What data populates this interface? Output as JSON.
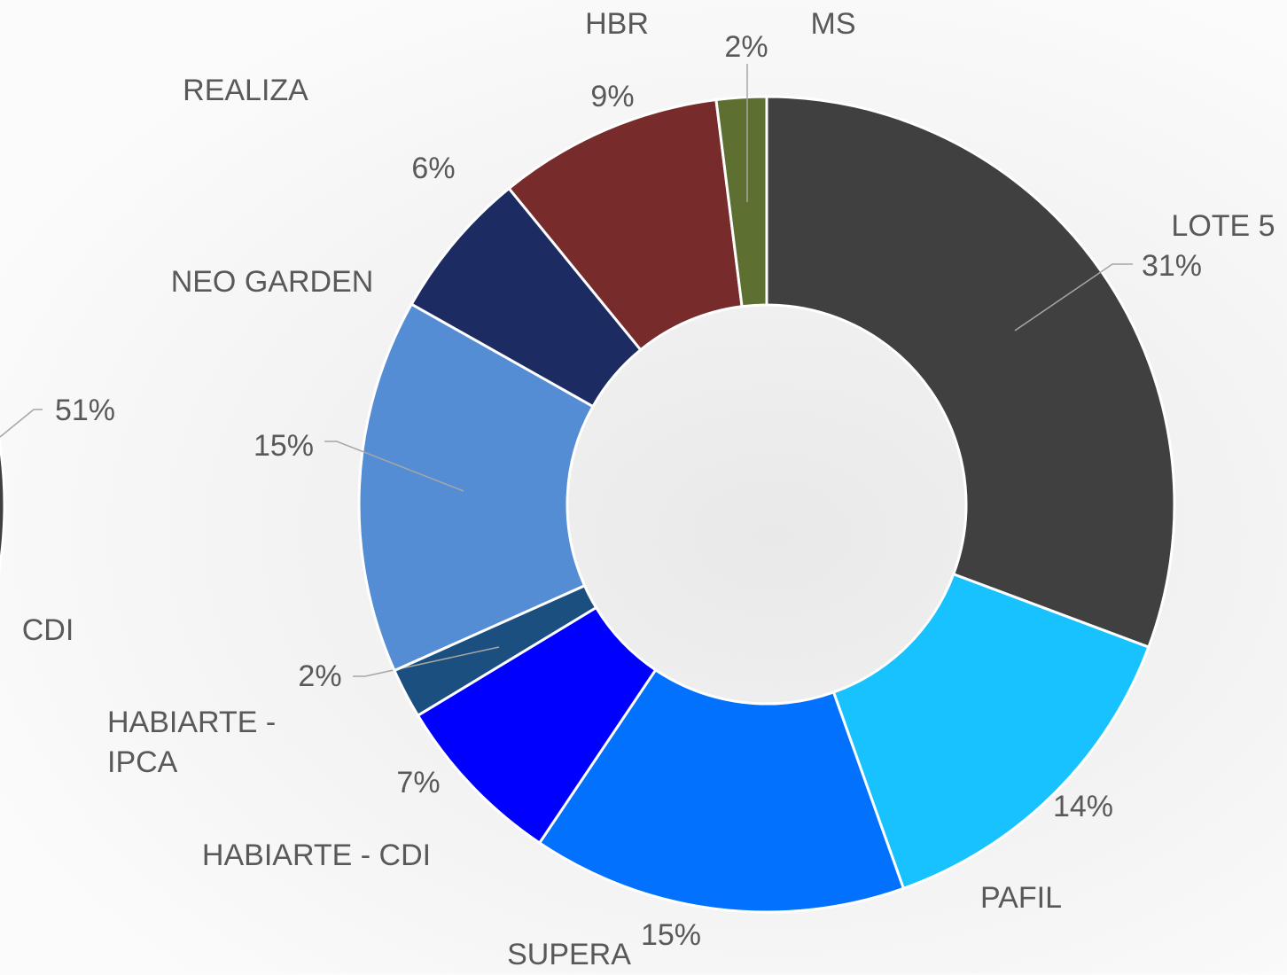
{
  "chart_data": [
    {
      "type": "donut",
      "categories": [
        "LOTE 5",
        "PAFIL",
        "SUPERA",
        "HABIARTE - CDI",
        "HABIARTE - IPCA",
        "NEO GARDEN",
        "REALIZA",
        "HBR",
        "MS"
      ],
      "values": [
        31,
        14,
        15,
        7,
        2,
        15,
        6,
        9,
        2
      ],
      "value_labels": [
        "31%",
        "14%",
        "15%",
        "7%",
        "2%",
        "15%",
        "6%",
        "9%",
        "2%"
      ],
      "colors": [
        "#404040",
        "#17c2fe",
        "#0271fd",
        "#0000fe",
        "#1b4f80",
        "#558dd5",
        "#1c2b62",
        "#772b2b",
        "#5e7031"
      ]
    },
    {
      "type": "pie",
      "categories": [
        "CDI"
      ],
      "values": [
        51
      ],
      "value_labels": [
        "51%"
      ],
      "colors": [
        "#404040"
      ]
    }
  ]
}
